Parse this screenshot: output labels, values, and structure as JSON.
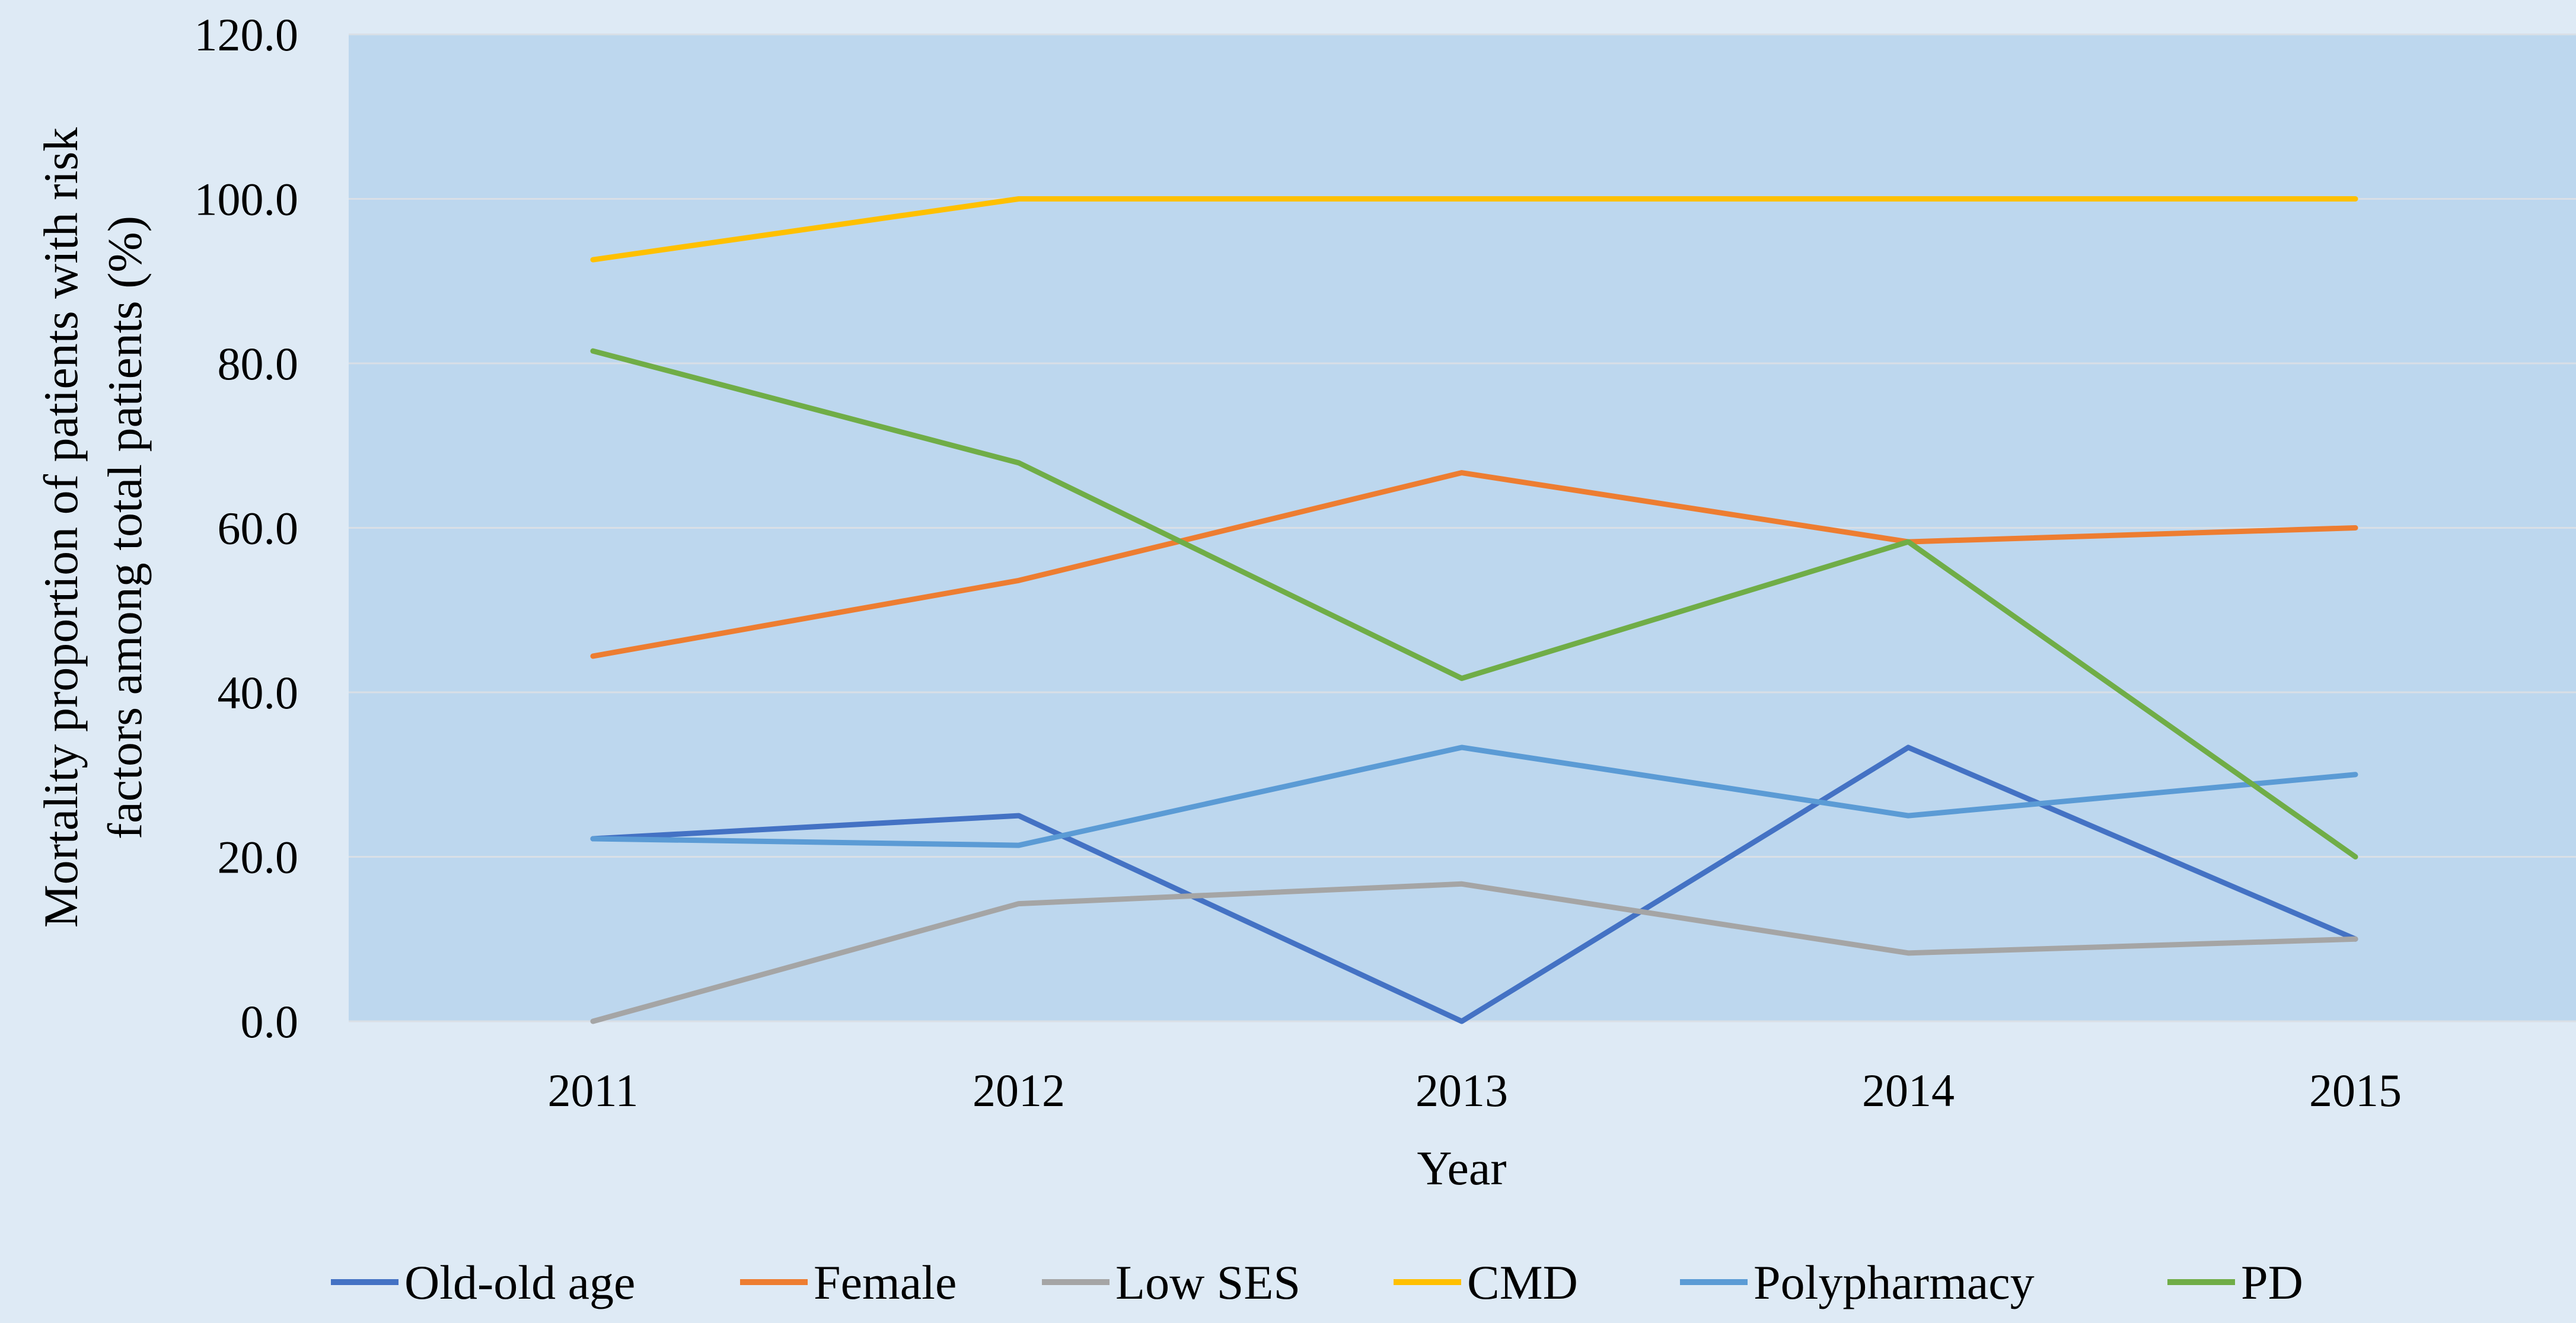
{
  "chart_data": {
    "type": "line",
    "title": "",
    "xlabel": "Year",
    "ylabel_lines": [
      "Mortality proportion of patients with risk",
      "factors among total patients (%)"
    ],
    "categories": [
      "2011",
      "2012",
      "2013",
      "2014",
      "2015"
    ],
    "ylim": [
      0,
      120
    ],
    "yticks": [
      "0.0",
      "20.0",
      "40.0",
      "60.0",
      "80.0",
      "100.0",
      "120.0"
    ],
    "grid": true,
    "legend_position": "bottom",
    "series": [
      {
        "name": "Old-old age",
        "color": "#4472c4",
        "values": [
          22.2,
          25.0,
          0.0,
          33.3,
          10.0
        ]
      },
      {
        "name": "Female",
        "color": "#ed7d31",
        "values": [
          44.4,
          53.6,
          66.7,
          58.3,
          60.0
        ]
      },
      {
        "name": "Low SES",
        "color": "#a5a5a5",
        "values": [
          0.0,
          14.3,
          16.7,
          8.3,
          10.0
        ]
      },
      {
        "name": "CMD",
        "color": "#ffc000",
        "values": [
          92.6,
          100.0,
          100.0,
          100.0,
          100.0
        ]
      },
      {
        "name": "Polypharmacy",
        "color": "#5b9bd5",
        "values": [
          22.2,
          21.4,
          33.3,
          25.0,
          30.0
        ]
      },
      {
        "name": "PD",
        "color": "#70ad47",
        "values": [
          81.5,
          67.9,
          41.7,
          58.3,
          20.0
        ]
      }
    ]
  }
}
